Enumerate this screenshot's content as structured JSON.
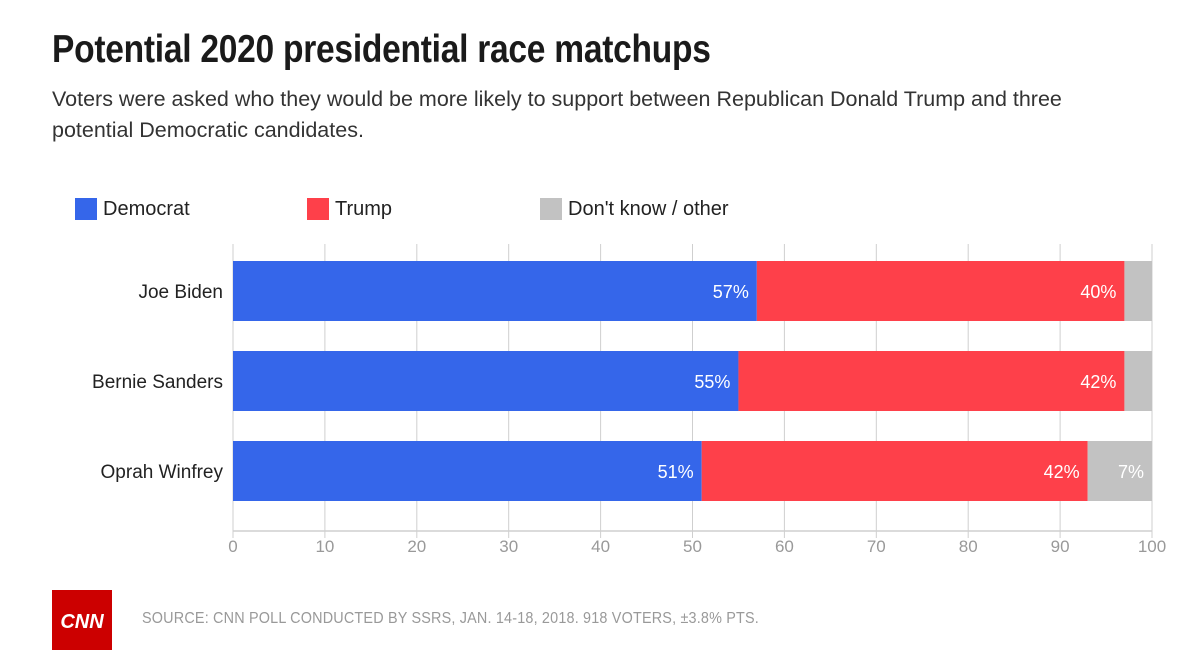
{
  "header": {
    "title": "Potential 2020 presidential race matchups",
    "subtitle": "Voters were asked who they would be more likely to support between Republican Donald Trump and three potential Democratic candidates."
  },
  "colors": {
    "democrat": "#3566ea",
    "trump": "#fe404a",
    "other": "#c2c2c2",
    "grid": "#cfcfcf",
    "axis_text": "#999999",
    "cnn_red": "#cc0000"
  },
  "chart_data": {
    "type": "bar",
    "orientation": "horizontal",
    "stacked": true,
    "categories": [
      "Joe Biden",
      "Bernie Sanders",
      "Oprah Winfrey"
    ],
    "series": [
      {
        "name": "Democrat",
        "values": [
          57,
          55,
          51
        ],
        "labels": [
          "57%",
          "55%",
          "51%"
        ]
      },
      {
        "name": "Trump",
        "values": [
          40,
          42,
          42
        ],
        "labels": [
          "40%",
          "42%",
          "42%"
        ]
      },
      {
        "name": "Don't know / other",
        "values": [
          3,
          3,
          7
        ],
        "labels": [
          "",
          "",
          "7%"
        ]
      }
    ],
    "xlim": [
      0,
      100
    ],
    "xticks": [
      0,
      10,
      20,
      30,
      40,
      50,
      60,
      70,
      80,
      90,
      100
    ],
    "grid": true,
    "legend_position": "top-left"
  },
  "footer": {
    "source": "SOURCE: CNN POLL CONDUCTED BY SSRS, JAN. 14-18, 2018. 918 VOTERS, ±3.8% PTS.",
    "logo_text": "CNN"
  }
}
